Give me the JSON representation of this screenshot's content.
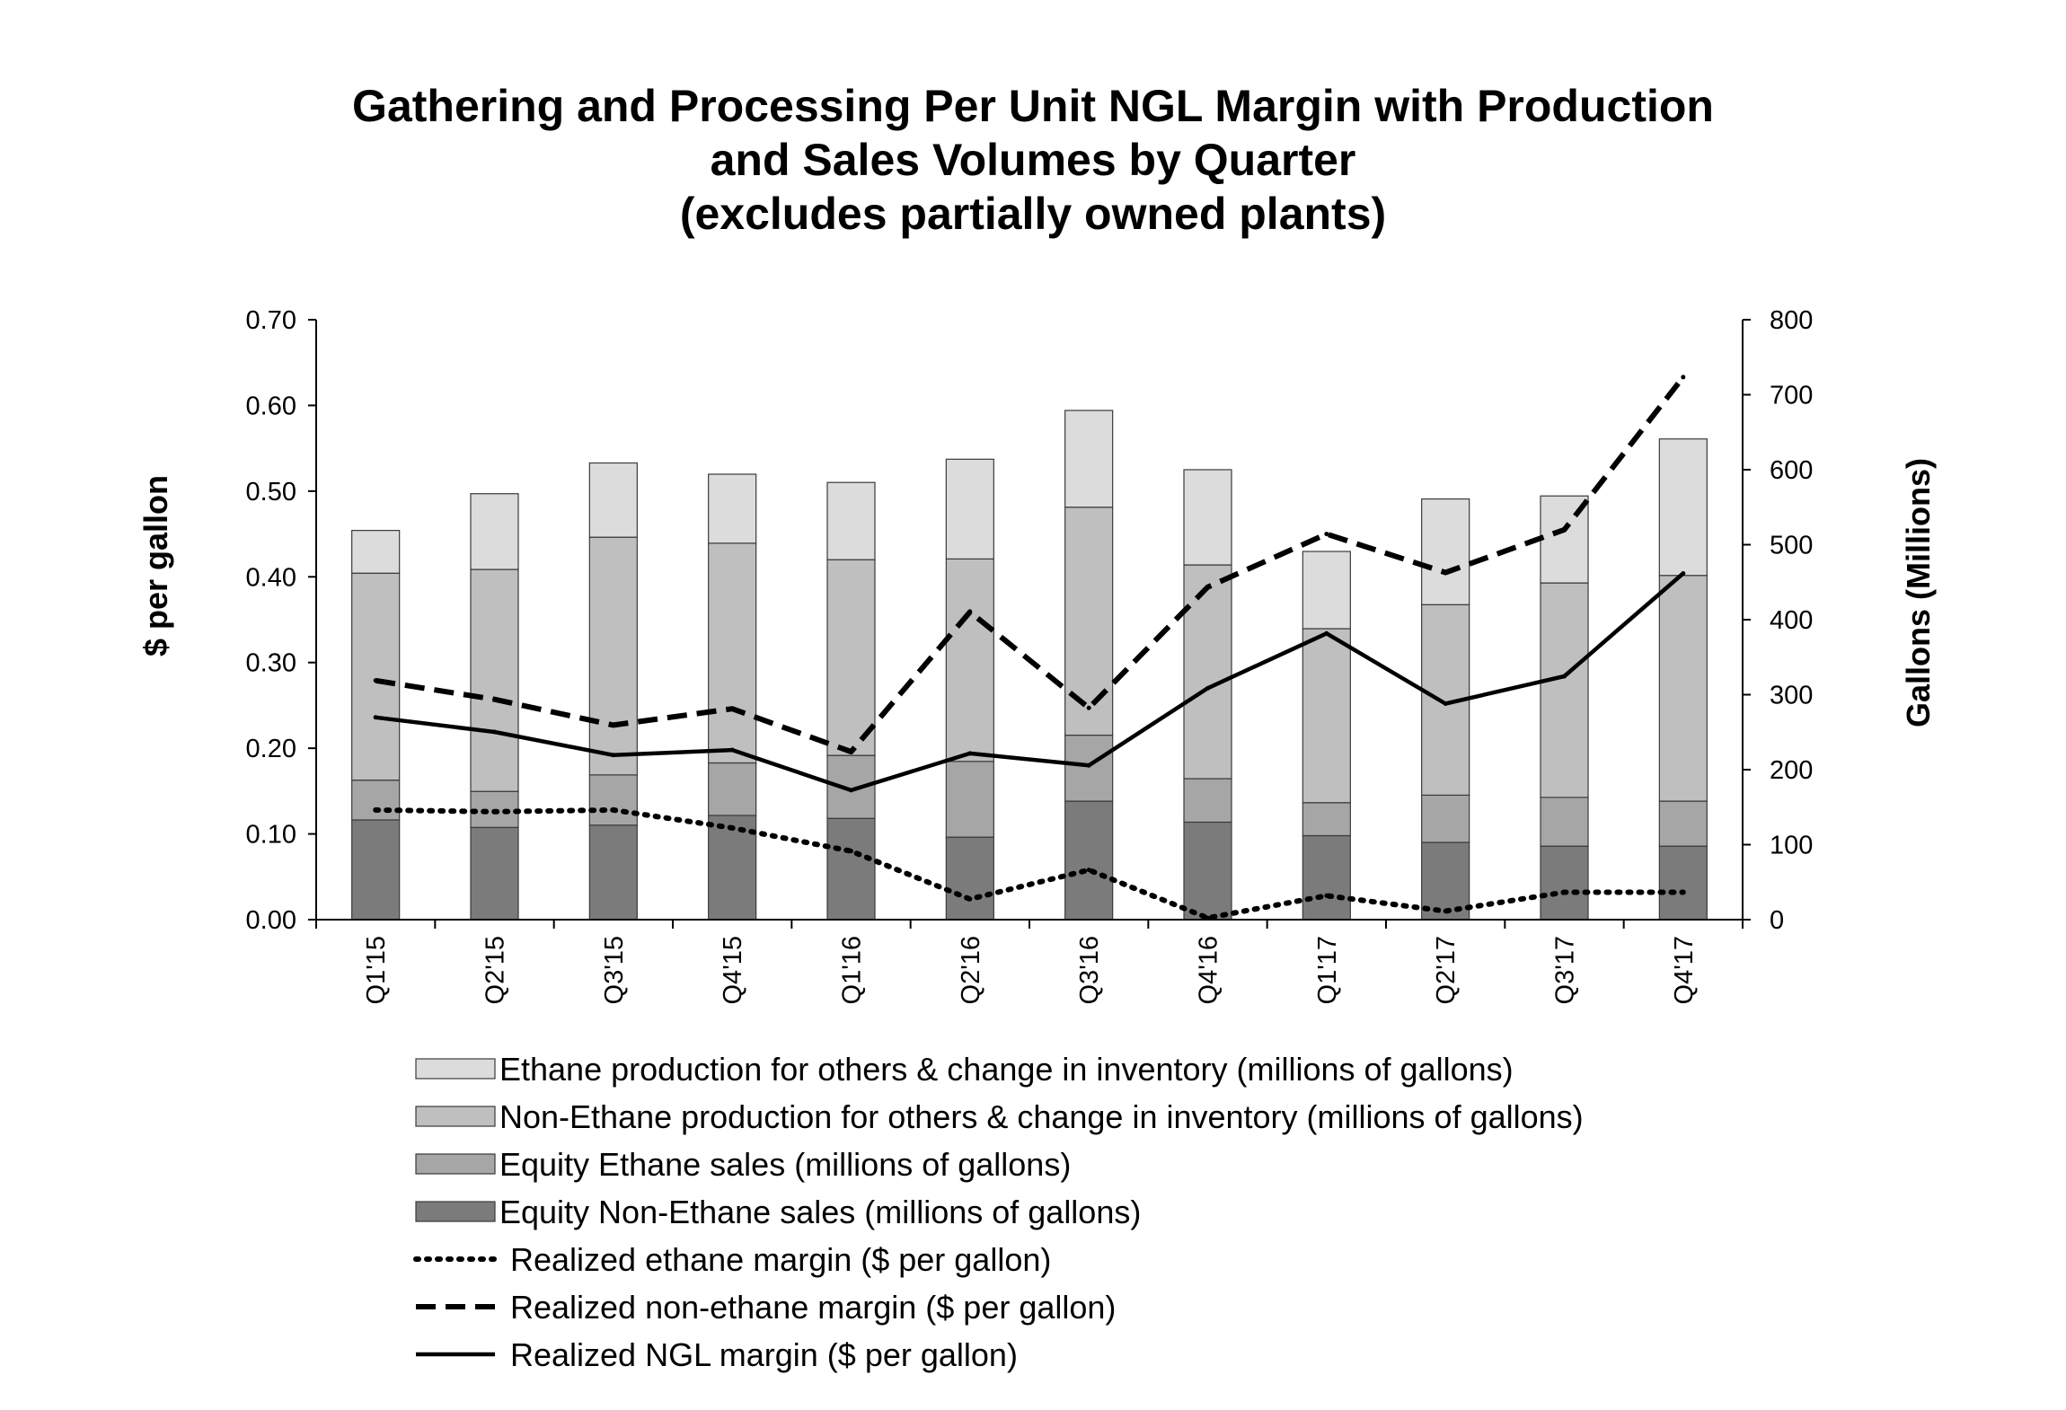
{
  "chart_data": {
    "type": "bar",
    "title_lines": [
      "Gathering and Processing Per Unit NGL Margin with Production",
      "and Sales Volumes by Quarter",
      "(excludes partially owned plants)"
    ],
    "categories": [
      "Q1'15",
      "Q2'15",
      "Q3'15",
      "Q4'15",
      "Q1'16",
      "Q2'16",
      "Q3'16",
      "Q4'16",
      "Q1'17",
      "Q2'17",
      "Q3'17",
      "Q4'17"
    ],
    "ylabel_left": "$ per gallon",
    "ylabel_right": "Gallons (Millions)",
    "ylim_left": [
      0,
      0.7
    ],
    "ylim_right": [
      0,
      800
    ],
    "left_ticks": [
      "0.00",
      "0.10",
      "0.20",
      "0.30",
      "0.40",
      "0.50",
      "0.60",
      "0.70"
    ],
    "right_ticks": [
      "0",
      "100",
      "200",
      "300",
      "400",
      "500",
      "600",
      "700",
      "800"
    ],
    "bar_series": [
      {
        "name": "Equity Non-Ethane sales (millions of gallons)",
        "color": "#7b7b7b",
        "values": [
          133,
          123,
          126,
          139,
          135,
          110,
          158,
          130,
          112,
          103,
          98,
          98
        ]
      },
      {
        "name": "Equity Ethane sales (millions of gallons)",
        "color": "#a6a6a6",
        "values": [
          53,
          48,
          67,
          70,
          84,
          101,
          88,
          58,
          44,
          63,
          65,
          60
        ]
      },
      {
        "name": "Non-Ethane production for others & change in inventory (millions of gallons)",
        "color": "#bfbfbf",
        "values": [
          276,
          296,
          317,
          293,
          261,
          270,
          304,
          285,
          232,
          254,
          286,
          301
        ]
      },
      {
        "name": "Ethane production for others & change in inventory (millions of gallons)",
        "color": "#dcdcdc",
        "values": [
          57,
          101,
          99,
          92,
          103,
          133,
          129,
          127,
          103,
          141,
          116,
          182
        ]
      }
    ],
    "line_series": [
      {
        "name": "Realized ethane margin ($ per gallon)",
        "style": "dotted",
        "values": [
          0.128,
          0.126,
          0.128,
          0.107,
          0.08,
          0.024,
          0.058,
          0.002,
          0.028,
          0.01,
          0.032,
          0.032
        ]
      },
      {
        "name": "Realized non-ethane margin ($ per gallon)",
        "style": "dashed",
        "values": [
          0.279,
          0.257,
          0.227,
          0.246,
          0.196,
          0.359,
          0.247,
          0.388,
          0.45,
          0.405,
          0.455,
          0.633
        ]
      },
      {
        "name": "Realized NGL margin ($ per gallon)",
        "style": "solid",
        "values": [
          0.236,
          0.219,
          0.192,
          0.198,
          0.151,
          0.194,
          0.18,
          0.27,
          0.334,
          0.252,
          0.284,
          0.404
        ]
      }
    ],
    "legend": [
      {
        "label": "Ethane production for others & change in inventory (millions of gallons)",
        "kind": "box",
        "color": "#dcdcdc"
      },
      {
        "label": "Non-Ethane production for others & change in inventory (millions of gallons)",
        "kind": "box",
        "color": "#bfbfbf"
      },
      {
        "label": "Equity Ethane sales (millions of gallons)",
        "kind": "box",
        "color": "#a6a6a6"
      },
      {
        "label": "Equity Non-Ethane sales (millions of gallons)",
        "kind": "box",
        "color": "#7b7b7b"
      },
      {
        "label": "Realized ethane margin ($ per gallon)",
        "kind": "dotted"
      },
      {
        "label": "Realized non-ethane margin ($ per gallon)",
        "kind": "dashed"
      },
      {
        "label": "Realized NGL margin ($ per gallon)",
        "kind": "solid"
      }
    ]
  }
}
